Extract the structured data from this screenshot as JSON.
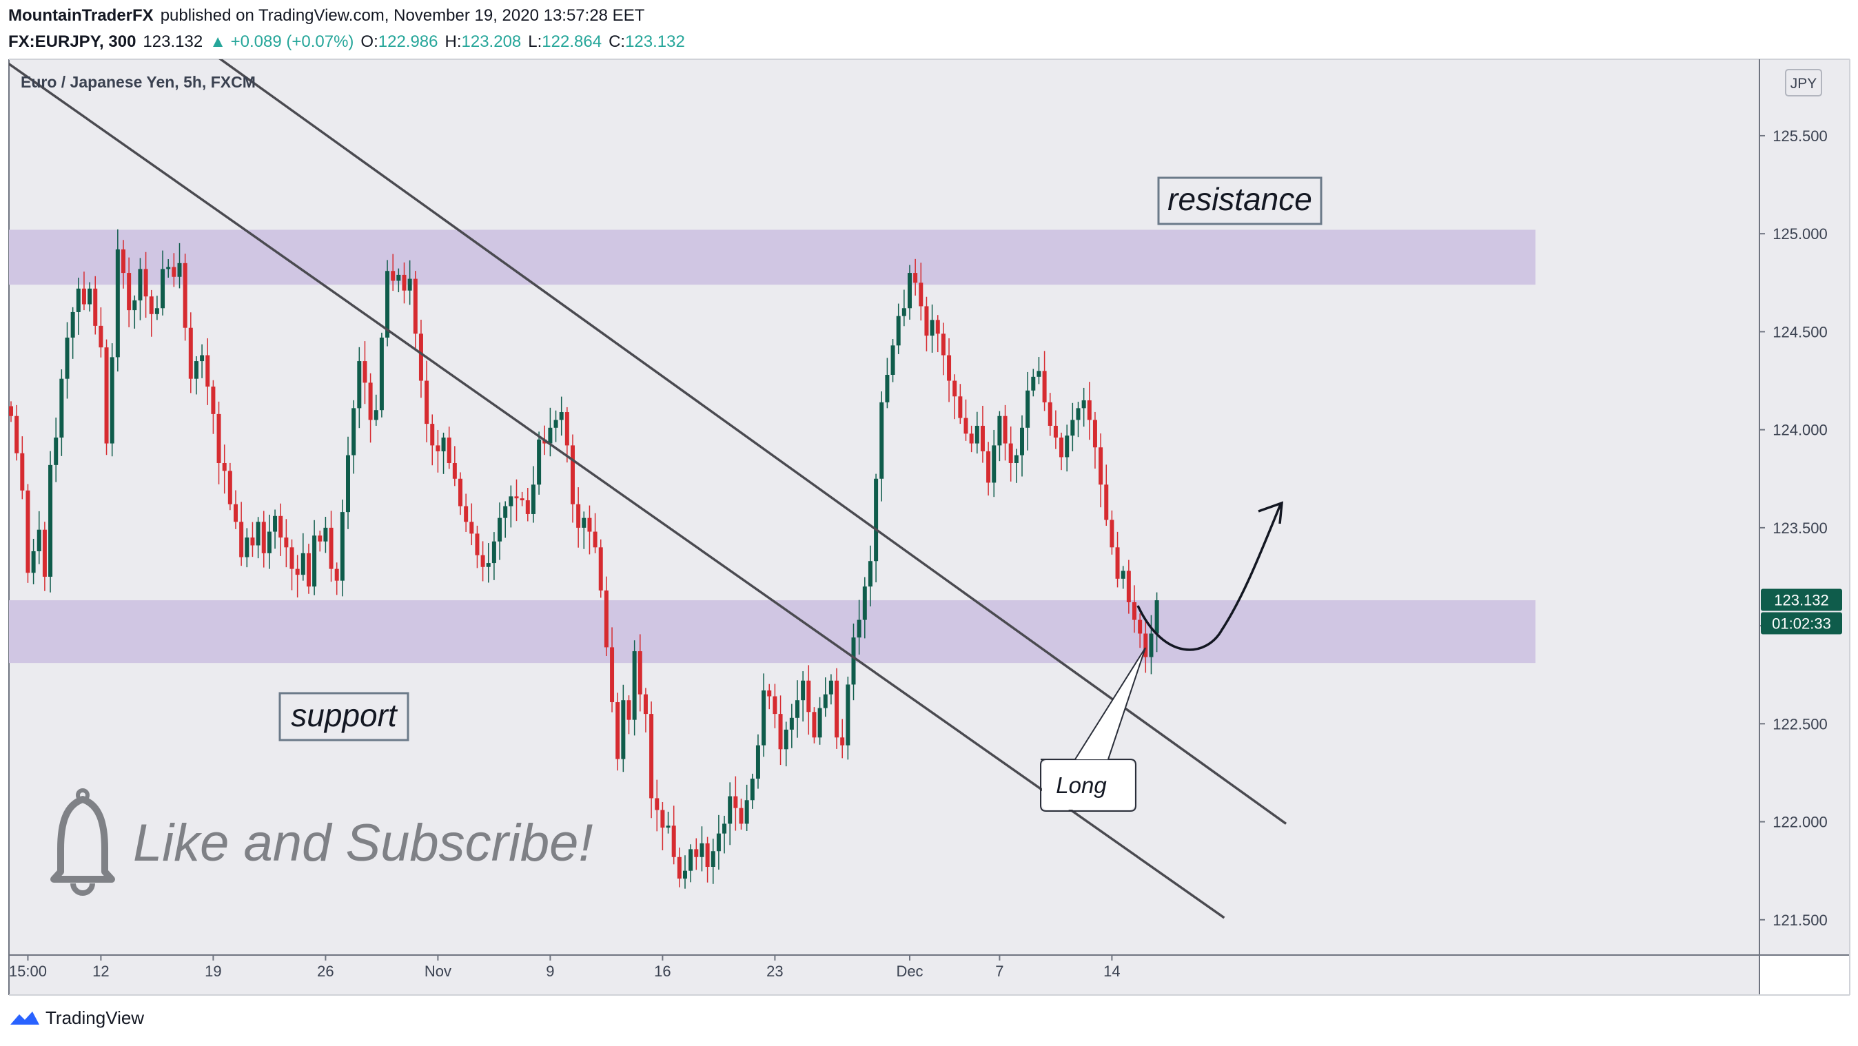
{
  "header": {
    "author": "MountainTraderFX",
    "published": "published on TradingView.com, November 19, 2020 13:57:28 EET",
    "symbol": "FX:EURJPY, 300",
    "last": "123.132",
    "change": "▲ +0.089 (+0.07%)",
    "o_label": "O:",
    "o_value": "122.986",
    "h_label": "H:",
    "h_value": "123.208",
    "l_label": "L:",
    "l_value": "122.864",
    "c_label": "C:",
    "c_value": "123.132"
  },
  "footer": {
    "brand": "TradingView",
    "logo_icon": "tradingview-logo-icon"
  },
  "colors": {
    "background": "#ebebef",
    "zone": "#d0c6e3",
    "up": "#0f5c4b",
    "down": "#d62b30",
    "trendline": "#4a4a50",
    "price_tag": "#0f5c4b",
    "box_border": "#6b7a89"
  },
  "chart_data": {
    "type": "candlestick",
    "title": "Euro / Japanese Yen, 5h, FXCM",
    "currency": "JPY",
    "timeframe": "5h",
    "ylim": [
      121.32,
      125.89
    ],
    "y_ticks": [
      "125.500",
      "125.000",
      "124.500",
      "124.000",
      "123.500",
      "123.000",
      "122.500",
      "122.000",
      "121.500"
    ],
    "x_ticks": [
      {
        "label": "15:00",
        "idx": 3
      },
      {
        "label": "12",
        "idx": 16
      },
      {
        "label": "19",
        "idx": 36
      },
      {
        "label": "26",
        "idx": 56
      },
      {
        "label": "Nov",
        "idx": 76
      },
      {
        "label": "9",
        "idx": 96
      },
      {
        "label": "16",
        "idx": 116
      },
      {
        "label": "23",
        "idx": 136
      },
      {
        "label": "Dec",
        "idx": 160
      },
      {
        "label": "7",
        "idx": 176
      },
      {
        "label": "14",
        "idx": 196
      }
    ],
    "current_price": "123.132",
    "countdown": "01:02:33",
    "closes": [
      124.07,
      123.88,
      123.69,
      123.27,
      123.38,
      123.49,
      123.25,
      123.82,
      123.96,
      124.26,
      124.47,
      124.6,
      124.72,
      124.64,
      124.72,
      124.53,
      124.42,
      123.93,
      124.37,
      124.92,
      124.8,
      124.61,
      124.66,
      124.82,
      124.68,
      124.59,
      124.62,
      124.82,
      124.83,
      124.78,
      124.85,
      124.52,
      124.26,
      124.35,
      124.38,
      124.22,
      124.08,
      123.83,
      123.79,
      123.62,
      123.53,
      123.35,
      123.45,
      123.41,
      123.53,
      123.37,
      123.48,
      123.56,
      123.45,
      123.4,
      123.29,
      123.26,
      123.37,
      123.2,
      123.46,
      123.43,
      123.5,
      123.29,
      123.23,
      123.58,
      123.87,
      124.11,
      124.35,
      124.24,
      124.05,
      124.1,
      124.47,
      124.81,
      124.76,
      124.79,
      124.71,
      124.77,
      124.49,
      124.25,
      124.03,
      123.92,
      123.89,
      123.96,
      123.83,
      123.75,
      123.61,
      123.53,
      123.47,
      123.36,
      123.3,
      123.32,
      123.43,
      123.55,
      123.61,
      123.66,
      123.65,
      123.64,
      123.57,
      123.72,
      123.95,
      123.93,
      124.01,
      124.05,
      124.09,
      123.92,
      123.62,
      123.5,
      123.55,
      123.48,
      123.4,
      123.18,
      122.89,
      122.61,
      122.32,
      122.62,
      122.52,
      122.87,
      122.65,
      122.55,
      122.12,
      122.06,
      121.97,
      121.98,
      121.82,
      121.71,
      121.75,
      121.86,
      121.82,
      121.89,
      121.77,
      121.85,
      121.94,
      121.99,
      122.13,
      122.07,
      121.99,
      122.11,
      122.22,
      122.39,
      122.67,
      122.64,
      122.55,
      122.37,
      122.47,
      122.53,
      122.62,
      122.72,
      122.56,
      122.43,
      122.58,
      122.65,
      122.72,
      122.43,
      122.39,
      122.7,
      122.94,
      123.03,
      123.2,
      123.33,
      123.75,
      124.14,
      124.28,
      124.43,
      124.58,
      124.62,
      124.8,
      124.75,
      124.63,
      124.48,
      124.56,
      124.49,
      124.38,
      124.25,
      124.17,
      124.06,
      123.98,
      123.93,
      124.02,
      123.89,
      123.73,
      123.92,
      124.07,
      123.93,
      123.83,
      123.87,
      124.01,
      124.2,
      124.27,
      124.3,
      124.14,
      124.02,
      123.96,
      123.86,
      123.97,
      124.05,
      124.11,
      124.15,
      124.05,
      123.91,
      123.72,
      123.54,
      123.4,
      123.24,
      123.28,
      123.12,
      123.03,
      122.96,
      122.84,
      122.96,
      123.13
    ],
    "zones": [
      {
        "from": 124.74,
        "to": 125.02
      },
      {
        "from": 122.81,
        "to": 123.13
      }
    ],
    "trendlines": [
      {
        "from": {
          "idx": -8,
          "price": 126.02
        },
        "to": {
          "idx": 216,
          "price": 121.51
        }
      },
      {
        "from": {
          "idx": 31,
          "price": 126.02
        },
        "to": {
          "idx": 227,
          "price": 121.99
        }
      }
    ],
    "labels": {
      "resistance": "resistance",
      "support": "support",
      "long": "Long",
      "promo": "Like and Subscribe!"
    },
    "legend": {
      "watermark_icon": "bell-icon"
    }
  }
}
